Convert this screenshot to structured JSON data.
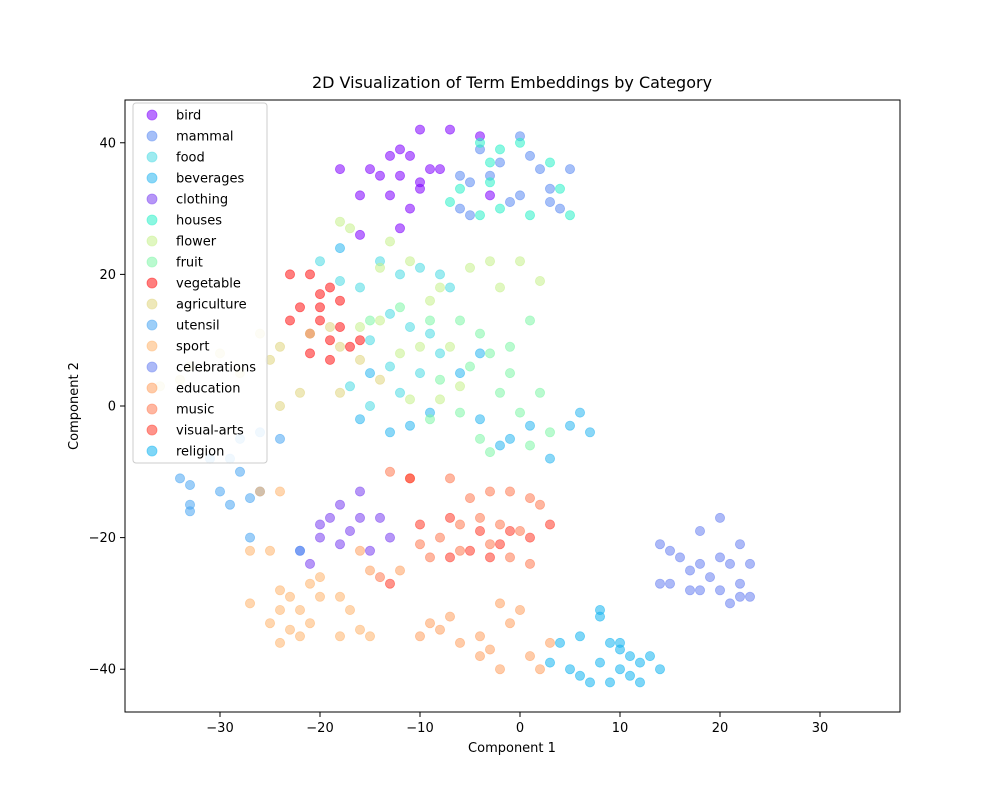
{
  "chart_data": {
    "type": "scatter",
    "title": "2D Visualization of Term Embeddings by Category",
    "xlabel": "Component 1",
    "ylabel": "Component 2",
    "xlim": [
      -39.5,
      38
    ],
    "ylim": [
      -46.5,
      46.5
    ],
    "xticks": [
      -30,
      -20,
      -10,
      0,
      10,
      20,
      30
    ],
    "yticks": [
      -40,
      -20,
      0,
      20,
      40
    ],
    "grid": false,
    "legend_position": "upper-left",
    "series": [
      {
        "name": "bird",
        "color": "#8000ff",
        "points": [
          [
            -10,
            42
          ],
          [
            -7,
            42
          ],
          [
            -4,
            41
          ],
          [
            -12,
            39
          ],
          [
            -13,
            38
          ],
          [
            -11,
            38
          ],
          [
            -15,
            36
          ],
          [
            -14,
            35
          ],
          [
            -12,
            35
          ],
          [
            -9,
            36
          ],
          [
            -8,
            36
          ],
          [
            -10,
            34
          ],
          [
            -10,
            33
          ],
          [
            -13,
            32
          ],
          [
            -16,
            32
          ],
          [
            -18,
            36
          ],
          [
            -3,
            32
          ],
          [
            -11,
            30
          ],
          [
            -16,
            26
          ],
          [
            -12,
            27
          ]
        ]
      },
      {
        "name": "mammal",
        "color": "#5b8af2",
        "points": [
          [
            0,
            41
          ],
          [
            -4,
            39
          ],
          [
            -2,
            37
          ],
          [
            1,
            38
          ],
          [
            2,
            36
          ],
          [
            -6,
            35
          ],
          [
            -5,
            34
          ],
          [
            3,
            33
          ],
          [
            5,
            36
          ],
          [
            4,
            30
          ],
          [
            -5,
            29
          ],
          [
            -6,
            30
          ],
          [
            0,
            32
          ],
          [
            -1,
            31
          ],
          [
            3,
            31
          ],
          [
            -3,
            35
          ]
        ]
      },
      {
        "name": "food",
        "color": "#4ddbe3",
        "points": [
          [
            -20,
            22
          ],
          [
            -18,
            19
          ],
          [
            -16,
            18
          ],
          [
            -14,
            22
          ],
          [
            -12,
            20
          ],
          [
            -10,
            21
          ],
          [
            -8,
            20
          ],
          [
            -7,
            18
          ],
          [
            -13,
            14
          ],
          [
            -11,
            12
          ],
          [
            -15,
            10
          ],
          [
            -9,
            11
          ],
          [
            -8,
            8
          ],
          [
            -13,
            6
          ],
          [
            -10,
            5
          ],
          [
            -12,
            2
          ],
          [
            -15,
            0
          ],
          [
            -17,
            3
          ]
        ]
      },
      {
        "name": "beverages",
        "color": "#2ab6f0",
        "points": [
          [
            -18,
            24
          ],
          [
            -16,
            -2
          ],
          [
            -15,
            5
          ],
          [
            -13,
            -4
          ],
          [
            -11,
            -3
          ],
          [
            -9,
            -1
          ],
          [
            -4,
            -2
          ],
          [
            -2,
            -6
          ],
          [
            -1,
            -5
          ],
          [
            1,
            -3
          ],
          [
            5,
            -3
          ],
          [
            6,
            -1
          ],
          [
            7,
            -4
          ],
          [
            3,
            -8
          ],
          [
            -6,
            5
          ],
          [
            -4,
            8
          ]
        ]
      },
      {
        "name": "clothing",
        "color": "#7a3ff0",
        "points": [
          [
            -18,
            -15
          ],
          [
            -16,
            -13
          ],
          [
            -16,
            -17
          ],
          [
            -14,
            -17
          ],
          [
            -20,
            -18
          ],
          [
            -22,
            -22
          ],
          [
            -19,
            -17
          ],
          [
            -17,
            -19
          ],
          [
            -18,
            -21
          ],
          [
            -21,
            -24
          ],
          [
            -13,
            -20
          ],
          [
            -15,
            -22
          ],
          [
            -20,
            -20
          ]
        ]
      },
      {
        "name": "houses",
        "color": "#2cf0c8",
        "points": [
          [
            -4,
            40
          ],
          [
            -2,
            39
          ],
          [
            -3,
            37
          ],
          [
            0,
            40
          ],
          [
            3,
            37
          ],
          [
            4,
            33
          ],
          [
            -6,
            33
          ],
          [
            -7,
            31
          ],
          [
            5,
            29
          ],
          [
            -2,
            30
          ],
          [
            1,
            29
          ],
          [
            -4,
            29
          ],
          [
            -3,
            34
          ]
        ]
      },
      {
        "name": "flower",
        "color": "#c6f08c",
        "points": [
          [
            -18,
            28
          ],
          [
            -17,
            27
          ],
          [
            -13,
            25
          ],
          [
            -11,
            22
          ],
          [
            -14,
            21
          ],
          [
            -8,
            18
          ],
          [
            -5,
            21
          ],
          [
            -3,
            22
          ],
          [
            -2,
            18
          ],
          [
            0,
            22
          ],
          [
            2,
            19
          ],
          [
            -9,
            16
          ],
          [
            -16,
            12
          ],
          [
            -14,
            13
          ],
          [
            -10,
            9
          ],
          [
            -7,
            9
          ],
          [
            -12,
            8
          ],
          [
            -11,
            1
          ],
          [
            -8,
            1
          ],
          [
            -6,
            3
          ]
        ]
      },
      {
        "name": "fruit",
        "color": "#7ff5a8",
        "points": [
          [
            -15,
            13
          ],
          [
            -12,
            15
          ],
          [
            -9,
            13
          ],
          [
            -6,
            13
          ],
          [
            -4,
            11
          ],
          [
            -1,
            9
          ],
          [
            1,
            13
          ],
          [
            -3,
            8
          ],
          [
            -5,
            6
          ],
          [
            -8,
            4
          ],
          [
            -1,
            5
          ],
          [
            2,
            2
          ],
          [
            -2,
            2
          ],
          [
            0,
            -1
          ],
          [
            -6,
            -1
          ],
          [
            -4,
            -5
          ],
          [
            -3,
            -7
          ],
          [
            1,
            -6
          ],
          [
            3,
            -4
          ],
          [
            -9,
            -2
          ]
        ]
      },
      {
        "name": "vegetable",
        "color": "#ff1414",
        "points": [
          [
            -23,
            20
          ],
          [
            -21,
            20
          ],
          [
            -19,
            18
          ],
          [
            -18,
            16
          ],
          [
            -20,
            15
          ],
          [
            -22,
            15
          ],
          [
            -20,
            13
          ],
          [
            -18,
            12
          ],
          [
            -21,
            11
          ],
          [
            -23,
            13
          ],
          [
            -19,
            10
          ],
          [
            -17,
            9
          ],
          [
            -21,
            8
          ],
          [
            -19,
            7
          ],
          [
            -16,
            10
          ],
          [
            -20,
            17
          ]
        ]
      },
      {
        "name": "agriculture",
        "color": "#e0d680",
        "points": [
          [
            -21,
            11
          ],
          [
            -19,
            12
          ],
          [
            -18,
            9
          ],
          [
            -16,
            7
          ],
          [
            -14,
            4
          ],
          [
            -24,
            9
          ],
          [
            -26,
            11
          ],
          [
            -25,
            7
          ],
          [
            -28,
            5
          ],
          [
            -30,
            8
          ],
          [
            -33,
            6
          ],
          [
            -36,
            3
          ],
          [
            -34,
            4
          ],
          [
            -22,
            2
          ],
          [
            -18,
            2
          ],
          [
            -24,
            0
          ]
        ]
      },
      {
        "name": "utensil",
        "color": "#4aa5f2",
        "points": [
          [
            -34,
            -11
          ],
          [
            -33,
            -12
          ],
          [
            -31,
            -8
          ],
          [
            -29,
            -8
          ],
          [
            -28,
            -10
          ],
          [
            -30,
            -13
          ],
          [
            -27,
            -14
          ],
          [
            -29,
            -15
          ],
          [
            -33,
            -15
          ],
          [
            -33,
            -16
          ],
          [
            -26,
            -13
          ],
          [
            -27,
            -20
          ],
          [
            -24,
            -5
          ],
          [
            -26,
            -4
          ],
          [
            -22,
            -22
          ],
          [
            -28,
            -5
          ]
        ]
      },
      {
        "name": "sport",
        "color": "#ffb46e",
        "points": [
          [
            -27,
            -22
          ],
          [
            -25,
            -22
          ],
          [
            -24,
            -28
          ],
          [
            -23,
            -29
          ],
          [
            -21,
            -27
          ],
          [
            -20,
            -29
          ],
          [
            -22,
            -31
          ],
          [
            -24,
            -31
          ],
          [
            -25,
            -33
          ],
          [
            -23,
            -34
          ],
          [
            -21,
            -33
          ],
          [
            -22,
            -35
          ],
          [
            -24,
            -36
          ],
          [
            -20,
            -26
          ],
          [
            -18,
            -29
          ],
          [
            -17,
            -31
          ],
          [
            -16,
            -34
          ],
          [
            -18,
            -35
          ],
          [
            -15,
            -35
          ],
          [
            -26,
            -13
          ],
          [
            -24,
            -13
          ],
          [
            -27,
            -30
          ]
        ]
      },
      {
        "name": "celebrations",
        "color": "#6880f0",
        "points": [
          [
            14,
            -21
          ],
          [
            15,
            -22
          ],
          [
            16,
            -23
          ],
          [
            18,
            -24
          ],
          [
            17,
            -25
          ],
          [
            19,
            -26
          ],
          [
            15,
            -27
          ],
          [
            14,
            -27
          ],
          [
            17,
            -28
          ],
          [
            18,
            -28
          ],
          [
            20,
            -28
          ],
          [
            21,
            -30
          ],
          [
            22,
            -29
          ],
          [
            23,
            -29
          ],
          [
            22,
            -27
          ],
          [
            23,
            -24
          ],
          [
            21,
            -24
          ],
          [
            20,
            -23
          ],
          [
            22,
            -21
          ],
          [
            18,
            -19
          ],
          [
            20,
            -17
          ]
        ]
      },
      {
        "name": "education",
        "color": "#ffa060",
        "points": [
          [
            -16,
            -22
          ],
          [
            -15,
            -25
          ],
          [
            -12,
            -25
          ],
          [
            -9,
            -33
          ],
          [
            -8,
            -34
          ],
          [
            -6,
            -36
          ],
          [
            -4,
            -35
          ],
          [
            -3,
            -37
          ],
          [
            -4,
            -38
          ],
          [
            -1,
            -33
          ],
          [
            0,
            -31
          ],
          [
            -2,
            -30
          ],
          [
            1,
            -38
          ],
          [
            -2,
            -40
          ],
          [
            3,
            -36
          ],
          [
            2,
            -40
          ],
          [
            -7,
            -32
          ],
          [
            -10,
            -35
          ]
        ]
      },
      {
        "name": "music",
        "color": "#ff7a52",
        "points": [
          [
            -13,
            -10
          ],
          [
            -11,
            -11
          ],
          [
            -7,
            -11
          ],
          [
            -5,
            -14
          ],
          [
            -3,
            -13
          ],
          [
            -1,
            -13
          ],
          [
            1,
            -14
          ],
          [
            2,
            -15
          ],
          [
            -4,
            -17
          ],
          [
            -6,
            -18
          ],
          [
            -8,
            -20
          ],
          [
            -10,
            -21
          ],
          [
            -2,
            -18
          ],
          [
            0,
            -19
          ],
          [
            -3,
            -21
          ],
          [
            -6,
            -22
          ],
          [
            -1,
            -23
          ],
          [
            1,
            -24
          ],
          [
            -9,
            -23
          ],
          [
            -14,
            -26
          ]
        ]
      },
      {
        "name": "visual-arts",
        "color": "#ff3a2a",
        "points": [
          [
            -11,
            -11
          ],
          [
            -7,
            -17
          ],
          [
            -4,
            -19
          ],
          [
            -2,
            -21
          ],
          [
            -5,
            -22
          ],
          [
            -7,
            -23
          ],
          [
            1,
            -20
          ],
          [
            3,
            -18
          ],
          [
            -3,
            -23
          ],
          [
            -1,
            -19
          ],
          [
            -10,
            -18
          ],
          [
            -13,
            -27
          ]
        ]
      },
      {
        "name": "religion",
        "color": "#14b4f0",
        "points": [
          [
            8,
            -32
          ],
          [
            9,
            -36
          ],
          [
            10,
            -37
          ],
          [
            11,
            -38
          ],
          [
            12,
            -39
          ],
          [
            10,
            -40
          ],
          [
            8,
            -39
          ],
          [
            6,
            -41
          ],
          [
            7,
            -42
          ],
          [
            9,
            -42
          ],
          [
            11,
            -41
          ],
          [
            12,
            -42
          ],
          [
            13,
            -38
          ],
          [
            14,
            -40
          ],
          [
            5,
            -40
          ],
          [
            4,
            -36
          ],
          [
            3,
            -39
          ],
          [
            6,
            -35
          ],
          [
            8,
            -31
          ],
          [
            10,
            -36
          ]
        ]
      }
    ]
  }
}
